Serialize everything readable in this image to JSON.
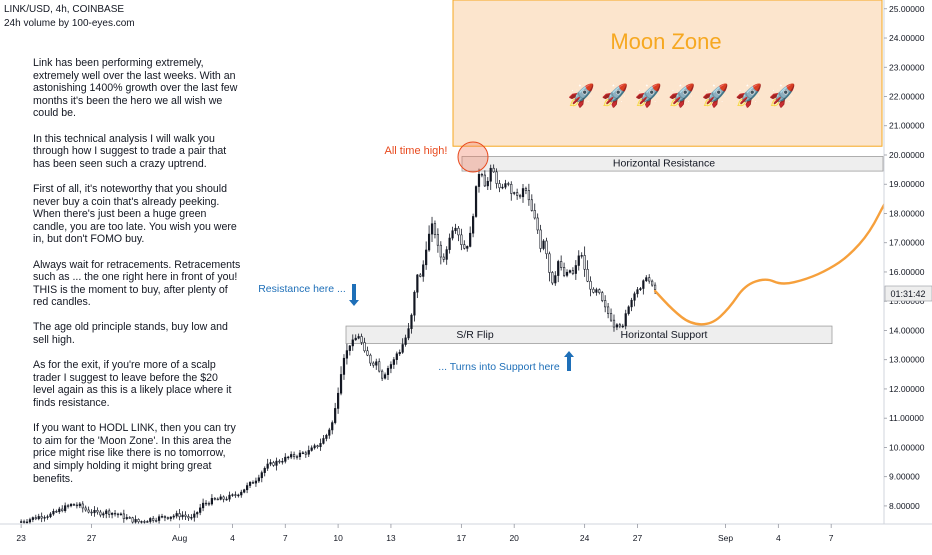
{
  "header": {
    "symbol_line": "LINK/USD, 4h, COINBASE",
    "indicator_line": "24h volume by 100-eyes.com"
  },
  "notes": [
    "Link has been performing extremely, extremely well over the last weeks. With an astonishing 1400% growth over the last few months it's been the hero we all wish we could be.",
    "In this technical analysis I will walk you through how I suggest to trade a pair that has been seen such a crazy uptrend.",
    "First of all, it's noteworthy that you should never buy a coin that's already peeking. When there's just been a huge green candle, you are too late. You wish you were in, but don't FOMO buy.",
    "Always wait for retracements. Retracements such as ... the one right here in front of you! THIS is the moment to buy, after plenty of red candles.",
    "The age old principle stands, buy low and sell high.",
    "As for the exit, if you're more of a scalp trader I suggest to leave before the $20 level again as this is a likely place where it finds resistance.",
    "If you want to HODL LINK, then you can try to aim for the 'Moon Zone'. In this area the price might rise like there is no tomorrow, and simply holding it might bring great benefits."
  ],
  "annotations": {
    "moon_zone": "Moon Zone",
    "rockets": "🚀 🚀 🚀 🚀 🚀 🚀 🚀",
    "all_time_high": "All time high!",
    "horizontal_resistance": "Horizontal Resistance",
    "resistance_here": "Resistance here ...",
    "sr_flip": "S/R Flip",
    "horizontal_support": "Horizontal Support",
    "turns_into_support": "... Turns into Support here"
  },
  "price_readout": "01:31:42",
  "colors": {
    "up": "#131722",
    "down": "#ffffff",
    "moon_zone_fill": "#fce5cd",
    "moon_zone_text": "#f6a821",
    "band_fill": "#eeeeee",
    "ath_text": "#e8491d",
    "blue_text": "#1e6fb8",
    "projection": "#f6a03c"
  },
  "chart_data": {
    "type": "candlestick",
    "symbol": "LINK/USD",
    "interval": "4h",
    "exchange": "COINBASE",
    "y_ticks": [
      "8.00000",
      "9.00000",
      "10.00000",
      "11.00000",
      "12.00000",
      "13.00000",
      "14.00000",
      "15.00000",
      "16.00000",
      "17.00000",
      "18.00000",
      "19.00000",
      "20.00000",
      "21.00000",
      "22.00000",
      "23.00000",
      "24.00000",
      "25.00000"
    ],
    "ylim": [
      7.45,
      25.3
    ],
    "x_ticks": [
      "23",
      "27",
      "Aug",
      "4",
      "7",
      "10",
      "13",
      "17",
      "20",
      "24",
      "27",
      "Sep",
      "4",
      "7"
    ],
    "x_tick_day_index": [
      0,
      4,
      9,
      12,
      15,
      18,
      21,
      25,
      28,
      32,
      35,
      40,
      43,
      46
    ],
    "x_day_range": [
      -1.2,
      49
    ],
    "time_axis_start": "2019-06-23",
    "horizontal_resistance_range": [
      19.45,
      19.95
    ],
    "horizontal_support_range": [
      13.55,
      14.15
    ],
    "moon_zone_range": [
      20.3,
      25.3
    ],
    "price_path": [
      [
        0.0,
        7.45
      ],
      [
        0.6,
        7.55
      ],
      [
        1.2,
        7.65
      ],
      [
        1.8,
        7.7
      ],
      [
        2.4,
        7.9
      ],
      [
        3.0,
        8.05
      ],
      [
        3.4,
        8.0
      ],
      [
        3.8,
        7.85
      ],
      [
        4.4,
        7.75
      ],
      [
        5.0,
        7.8
      ],
      [
        5.6,
        7.7
      ],
      [
        6.2,
        7.55
      ],
      [
        6.8,
        7.45
      ],
      [
        7.4,
        7.55
      ],
      [
        8.0,
        7.6
      ],
      [
        8.6,
        7.65
      ],
      [
        9.2,
        7.7
      ],
      [
        9.8,
        7.55
      ],
      [
        10.4,
        8.05
      ],
      [
        11.0,
        8.2
      ],
      [
        11.6,
        8.25
      ],
      [
        12.2,
        8.35
      ],
      [
        12.8,
        8.6
      ],
      [
        13.4,
        8.9
      ],
      [
        14.0,
        9.35
      ],
      [
        14.6,
        9.5
      ],
      [
        15.2,
        9.65
      ],
      [
        15.8,
        9.75
      ],
      [
        16.4,
        9.85
      ],
      [
        17.0,
        10.1
      ],
      [
        17.4,
        10.4
      ],
      [
        17.8,
        10.9
      ],
      [
        18.0,
        11.6
      ],
      [
        18.2,
        12.4
      ],
      [
        18.4,
        13.1
      ],
      [
        18.6,
        13.3
      ],
      [
        18.8,
        13.6
      ],
      [
        19.0,
        13.6
      ],
      [
        19.2,
        13.9
      ],
      [
        19.4,
        13.6
      ],
      [
        19.6,
        13.2
      ],
      [
        19.8,
        13.1
      ],
      [
        20.0,
        12.8
      ],
      [
        20.2,
        13.0
      ],
      [
        20.4,
        12.7
      ],
      [
        20.6,
        12.4
      ],
      [
        20.8,
        12.6
      ],
      [
        21.0,
        12.8
      ],
      [
        21.2,
        12.9
      ],
      [
        21.4,
        13.2
      ],
      [
        21.6,
        13.3
      ],
      [
        21.8,
        13.6
      ],
      [
        22.0,
        13.85
      ],
      [
        22.2,
        14.25
      ],
      [
        22.4,
        15.2
      ],
      [
        22.6,
        16.0
      ],
      [
        22.8,
        15.75
      ],
      [
        23.0,
        16.6
      ],
      [
        23.2,
        17.15
      ],
      [
        23.4,
        17.6
      ],
      [
        23.6,
        17.3
      ],
      [
        23.8,
        16.7
      ],
      [
        24.0,
        16.4
      ],
      [
        24.2,
        16.6
      ],
      [
        24.4,
        17.2
      ],
      [
        24.6,
        17.5
      ],
      [
        24.8,
        17.6
      ],
      [
        25.0,
        17.1
      ],
      [
        25.2,
        16.8
      ],
      [
        25.4,
        16.9
      ],
      [
        25.6,
        17.3
      ],
      [
        25.8,
        18.2
      ],
      [
        26.0,
        19.3
      ],
      [
        26.2,
        19.5
      ],
      [
        26.4,
        19.0
      ],
      [
        26.6,
        19.1
      ],
      [
        26.8,
        19.6
      ],
      [
        27.0,
        19.25
      ],
      [
        27.2,
        18.85
      ],
      [
        27.4,
        18.8
      ],
      [
        27.6,
        19.1
      ],
      [
        27.8,
        18.9
      ],
      [
        28.0,
        18.6
      ],
      [
        28.2,
        18.7
      ],
      [
        28.4,
        18.5
      ],
      [
        28.6,
        18.85
      ],
      [
        28.8,
        18.75
      ],
      [
        29.0,
        18.2
      ],
      [
        29.2,
        17.9
      ],
      [
        29.4,
        17.5
      ],
      [
        29.6,
        16.8
      ],
      [
        29.8,
        17.2
      ],
      [
        30.0,
        16.3
      ],
      [
        30.2,
        15.6
      ],
      [
        30.4,
        15.9
      ],
      [
        30.6,
        16.4
      ],
      [
        30.8,
        16.0
      ],
      [
        31.0,
        15.8
      ],
      [
        31.2,
        16.1
      ],
      [
        31.4,
        15.9
      ],
      [
        31.6,
        16.2
      ],
      [
        31.8,
        16.7
      ],
      [
        32.0,
        16.4
      ],
      [
        32.2,
        15.7
      ],
      [
        32.4,
        15.5
      ],
      [
        32.6,
        15.2
      ],
      [
        32.8,
        15.4
      ],
      [
        33.0,
        15.1
      ],
      [
        33.2,
        14.8
      ],
      [
        33.4,
        14.6
      ],
      [
        33.6,
        14.4
      ],
      [
        33.8,
        14.1
      ],
      [
        34.0,
        14.4
      ],
      [
        34.2,
        13.95
      ],
      [
        34.4,
        14.5
      ],
      [
        34.6,
        14.9
      ],
      [
        34.8,
        15.1
      ],
      [
        35.0,
        15.5
      ],
      [
        35.2,
        15.3
      ],
      [
        35.4,
        15.6
      ],
      [
        35.6,
        15.9
      ],
      [
        35.8,
        15.6
      ],
      [
        36.0,
        15.4
      ]
    ],
    "projection_path": [
      [
        36.0,
        15.35
      ],
      [
        37.0,
        14.7
      ],
      [
        38.0,
        14.22
      ],
      [
        39.2,
        14.2
      ],
      [
        40.2,
        14.75
      ],
      [
        41.1,
        15.55
      ],
      [
        42.3,
        15.8
      ],
      [
        43.2,
        15.55
      ],
      [
        44.6,
        15.75
      ],
      [
        45.9,
        16.1
      ],
      [
        47.0,
        16.55
      ],
      [
        48.2,
        17.35
      ],
      [
        49.2,
        18.55
      ],
      [
        49.9,
        19.0
      ],
      [
        50.6,
        18.45
      ]
    ],
    "projection_arrowhead": [
      [
        49.2,
        18.4
      ],
      [
        49.9,
        19.0
      ],
      [
        50.6,
        18.4
      ]
    ]
  }
}
